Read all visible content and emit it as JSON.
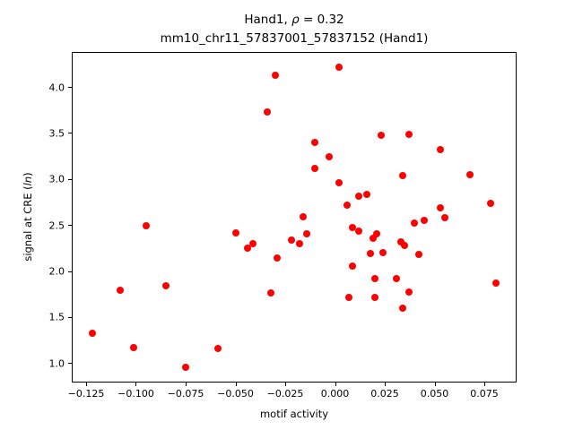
{
  "title_parts": {
    "prefix": "Hand1, ",
    "rho": "ρ",
    "suffix": " = 0.32"
  },
  "subtitle": "mm10_chr11_57837001_57837152 (Hand1)",
  "ylabel_parts": {
    "prefix": "signal at CRE (",
    "italic": "ln",
    "suffix": ")"
  },
  "chart_data": {
    "type": "scatter",
    "title": "Hand1, ρ = 0.32",
    "subtitle": "mm10_chr11_57837001_57837152 (Hand1)",
    "xlabel": "motif activity",
    "ylabel": "signal at CRE (ln)",
    "marker_color": "#ff0000",
    "grid": false,
    "legend": "none",
    "xlim": [
      -0.1322,
      0.0912
    ],
    "ylim": [
      0.788,
      4.386
    ],
    "xticks": [
      -0.125,
      -0.1,
      -0.075,
      -0.05,
      -0.025,
      0.0,
      0.025,
      0.05,
      0.075
    ],
    "xtick_labels": [
      "−0.125",
      "−0.100",
      "−0.075",
      "−0.050",
      "−0.025",
      "0.000",
      "0.025",
      "0.050",
      "0.075"
    ],
    "yticks": [
      1.0,
      1.5,
      2.0,
      2.5,
      3.0,
      3.5,
      4.0
    ],
    "ytick_labels": [
      "1.0",
      "1.5",
      "2.0",
      "2.5",
      "3.0",
      "3.5",
      "4.0"
    ],
    "points": [
      [
        0.002,
        4.22
      ],
      [
        -0.03,
        4.13
      ],
      [
        -0.034,
        3.73
      ],
      [
        0.037,
        3.49
      ],
      [
        0.023,
        3.48
      ],
      [
        -0.01,
        3.4
      ],
      [
        0.053,
        3.32
      ],
      [
        -0.003,
        3.24
      ],
      [
        -0.01,
        3.12
      ],
      [
        0.068,
        3.05
      ],
      [
        0.034,
        3.04
      ],
      [
        0.002,
        2.96
      ],
      [
        0.016,
        2.83
      ],
      [
        0.012,
        2.81
      ],
      [
        0.078,
        2.74
      ],
      [
        0.006,
        2.72
      ],
      [
        0.053,
        2.69
      ],
      [
        -0.016,
        2.59
      ],
      [
        0.055,
        2.58
      ],
      [
        0.045,
        2.55
      ],
      [
        0.04,
        2.52
      ],
      [
        -0.095,
        2.49
      ],
      [
        0.009,
        2.47
      ],
      [
        0.012,
        2.43
      ],
      [
        -0.05,
        2.41
      ],
      [
        0.021,
        2.4
      ],
      [
        -0.014,
        2.4
      ],
      [
        0.019,
        2.36
      ],
      [
        -0.022,
        2.34
      ],
      [
        0.033,
        2.32
      ],
      [
        -0.041,
        2.3
      ],
      [
        -0.018,
        2.3
      ],
      [
        0.035,
        2.28
      ],
      [
        -0.044,
        2.25
      ],
      [
        0.024,
        2.2
      ],
      [
        0.018,
        2.19
      ],
      [
        0.042,
        2.18
      ],
      [
        -0.029,
        2.14
      ],
      [
        0.009,
        2.05
      ],
      [
        0.02,
        1.92
      ],
      [
        0.031,
        1.92
      ],
      [
        0.081,
        1.87
      ],
      [
        -0.085,
        1.84
      ],
      [
        -0.108,
        1.79
      ],
      [
        0.037,
        1.77
      ],
      [
        -0.032,
        1.76
      ],
      [
        0.007,
        1.71
      ],
      [
        0.02,
        1.71
      ],
      [
        0.034,
        1.6
      ],
      [
        -0.122,
        1.32
      ],
      [
        -0.101,
        1.17
      ],
      [
        -0.059,
        1.16
      ],
      [
        -0.075,
        0.95
      ]
    ]
  }
}
